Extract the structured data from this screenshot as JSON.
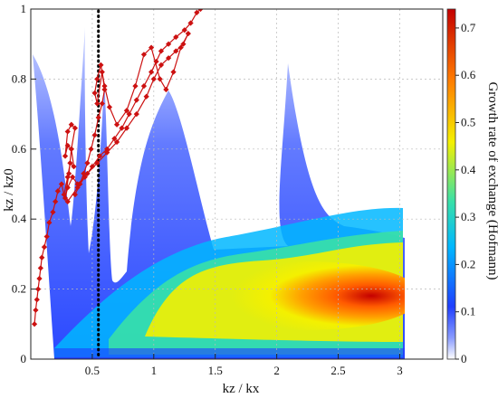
{
  "chart_data": {
    "type": "heatmap",
    "xlabel": "kz / kx",
    "ylabel": "kz / kz0",
    "xlim": [
      0,
      3.35
    ],
    "ylim": [
      0,
      1
    ],
    "x_ticks": [
      "0.5",
      "1",
      "1.5",
      "2",
      "2.5",
      "3"
    ],
    "x_tick_values": [
      0.5,
      1,
      1.5,
      2,
      2.5,
      3
    ],
    "y_ticks": [
      "0",
      "0.2",
      "0.4",
      "0.6",
      "0.8",
      "1"
    ],
    "y_tick_values": [
      0,
      0.2,
      0.4,
      0.6,
      0.8,
      1
    ],
    "grid": true,
    "colorbar": {
      "label": "Growth rate of exchange (Hofmann)",
      "range": [
        0,
        0.74
      ],
      "ticks": [
        "0",
        "0.1",
        "0.2",
        "0.3",
        "0.4",
        "0.5",
        "0.6",
        "0.7"
      ],
      "tick_values": [
        0,
        0.1,
        0.2,
        0.3,
        0.4,
        0.5,
        0.6,
        0.7
      ],
      "colors": [
        "#ffffff",
        "#1f3fff",
        "#00b7ff",
        "#38e0a8",
        "#f4f000",
        "#ff7a00",
        "#c40000"
      ]
    },
    "vertical_reference_line": {
      "x": 0.55,
      "style": "dotted",
      "color": "#000000"
    },
    "peaks": [
      {
        "x": 0.25,
        "top": 1.0
      },
      {
        "x": 0.33,
        "top": 0.97
      },
      {
        "x": 0.5,
        "top": 0.94
      },
      {
        "x": 1.0,
        "top": 0.68
      },
      {
        "x": 2.0,
        "top": 0.92
      },
      {
        "x": 3.0,
        "top": 0.33
      }
    ],
    "max_region": {
      "x": 3.0,
      "y": 0.18,
      "value": 0.74
    },
    "series": [
      {
        "color": "#cc1111",
        "points": [
          [
            0.03,
            0.1
          ],
          [
            0.04,
            0.14
          ],
          [
            0.05,
            0.17
          ],
          [
            0.06,
            0.2
          ],
          [
            0.07,
            0.23
          ],
          [
            0.08,
            0.26
          ],
          [
            0.09,
            0.29
          ],
          [
            0.11,
            0.32
          ],
          [
            0.13,
            0.35
          ],
          [
            0.15,
            0.39
          ],
          [
            0.18,
            0.42
          ],
          [
            0.2,
            0.45
          ],
          [
            0.22,
            0.48
          ],
          [
            0.25,
            0.5
          ],
          [
            0.27,
            0.47
          ],
          [
            0.3,
            0.52
          ],
          [
            0.32,
            0.56
          ],
          [
            0.35,
            0.55
          ],
          [
            0.33,
            0.6
          ],
          [
            0.3,
            0.61
          ],
          [
            0.28,
            0.58
          ],
          [
            0.3,
            0.65
          ],
          [
            0.33,
            0.67
          ],
          [
            0.36,
            0.66
          ],
          [
            0.33,
            0.6
          ],
          [
            0.31,
            0.53
          ],
          [
            0.28,
            0.46
          ],
          [
            0.3,
            0.49
          ],
          [
            0.34,
            0.52
          ],
          [
            0.38,
            0.5
          ],
          [
            0.44,
            0.52
          ],
          [
            0.5,
            0.55
          ],
          [
            0.56,
            0.58
          ],
          [
            0.62,
            0.6
          ],
          [
            0.68,
            0.63
          ],
          [
            0.74,
            0.66
          ],
          [
            0.8,
            0.7
          ],
          [
            0.86,
            0.74
          ],
          [
            0.92,
            0.78
          ],
          [
            0.98,
            0.82
          ],
          [
            1.02,
            0.85
          ],
          [
            1.06,
            0.88
          ],
          [
            1.12,
            0.9
          ],
          [
            1.18,
            0.92
          ],
          [
            1.25,
            0.94
          ],
          [
            1.3,
            0.96
          ],
          [
            1.35,
            0.99
          ],
          [
            1.38,
            1.0
          ]
        ]
      },
      {
        "color": "#cc1111",
        "points": [
          [
            0.3,
            0.45
          ],
          [
            0.38,
            0.49
          ],
          [
            0.46,
            0.53
          ],
          [
            0.54,
            0.56
          ],
          [
            0.62,
            0.59
          ],
          [
            0.7,
            0.62
          ],
          [
            0.78,
            0.66
          ],
          [
            0.86,
            0.7
          ],
          [
            0.94,
            0.75
          ],
          [
            1.0,
            0.8
          ],
          [
            1.06,
            0.84
          ],
          [
            1.12,
            0.86
          ],
          [
            1.18,
            0.88
          ],
          [
            1.24,
            0.9
          ],
          [
            1.28,
            0.93
          ],
          [
            1.22,
            0.89
          ],
          [
            1.16,
            0.82
          ],
          [
            1.1,
            0.77
          ],
          [
            1.05,
            0.8
          ],
          [
            0.98,
            0.89
          ],
          [
            0.92,
            0.87
          ],
          [
            0.85,
            0.78
          ],
          [
            0.78,
            0.71
          ],
          [
            0.7,
            0.67
          ],
          [
            0.64,
            0.72
          ],
          [
            0.6,
            0.78
          ],
          [
            0.57,
            0.84
          ],
          [
            0.54,
            0.8
          ],
          [
            0.52,
            0.76
          ],
          [
            0.54,
            0.73
          ],
          [
            0.58,
            0.82
          ],
          [
            0.6,
            0.77
          ],
          [
            0.58,
            0.73
          ],
          [
            0.55,
            0.69
          ],
          [
            0.52,
            0.64
          ],
          [
            0.49,
            0.6
          ],
          [
            0.46,
            0.56
          ],
          [
            0.43,
            0.53
          ],
          [
            0.4,
            0.5
          ],
          [
            0.36,
            0.47
          ]
        ]
      }
    ]
  }
}
